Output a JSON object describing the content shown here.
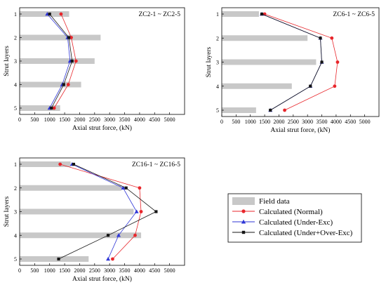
{
  "colors": {
    "field": "#c8c8c8",
    "normal": "#e8262b",
    "under_exc": "#2e35d6",
    "under_over_exc": "#151515"
  },
  "legend": {
    "field": "Field data",
    "normal": "Calculated (Normal)",
    "under_exc": "Calculated (Under-Exc)",
    "under_over_exc": "Calculated (Under+Over-Exc)"
  },
  "chart_data": [
    {
      "type": "bar",
      "orientation": "horizontal",
      "title": "ZC2-1 ~ ZC2-5",
      "xlabel": "Axial strut force, (kN)",
      "ylabel": "Strut layers",
      "xlim": [
        0,
        5500
      ],
      "xticks": [
        "0",
        "500",
        "1000",
        "1500",
        "2000",
        "2500",
        "3000",
        "3500",
        "4000",
        "4500",
        "5000"
      ],
      "categories": [
        "1",
        "2",
        "3",
        "4",
        "5"
      ],
      "series": [
        {
          "name": "Field data",
          "type": "bar",
          "values": [
            1650,
            2700,
            2500,
            2050,
            1350
          ]
        },
        {
          "name": "Calculated (Normal)",
          "type": "line",
          "values": [
            1380,
            1720,
            1880,
            1620,
            1150
          ]
        },
        {
          "name": "Calculated (Under-Exc)",
          "type": "line",
          "values": [
            920,
            1600,
            1680,
            1420,
            1000
          ]
        },
        {
          "name": "Calculated (Under+Over-Exc)",
          "type": "line",
          "values": [
            1000,
            1640,
            1750,
            1470,
            1060
          ]
        }
      ]
    },
    {
      "type": "bar",
      "orientation": "horizontal",
      "title": "ZC6-1 ~ ZC6-5",
      "xlabel": "Axial strut force, (kN)",
      "ylabel": "Strut layers",
      "xlim": [
        0,
        5500
      ],
      "xticks": [
        "0",
        "500",
        "1000",
        "1500",
        "2000",
        "2500",
        "3000",
        "3500",
        "4000",
        "4500",
        "5000"
      ],
      "categories": [
        "1",
        "2",
        "3",
        "4",
        "5"
      ],
      "series": [
        {
          "name": "Field data",
          "type": "bar",
          "values": [
            1300,
            3000,
            3300,
            2450,
            1200
          ]
        },
        {
          "name": "Calculated (Normal)",
          "type": "line",
          "values": [
            1500,
            3850,
            4050,
            3950,
            2200
          ]
        },
        {
          "name": "Calculated (Under-Exc)",
          "type": "line",
          "values": [
            1400,
            3450,
            3500,
            3100,
            1700
          ]
        },
        {
          "name": "Calculated (Under+Over-Exc)",
          "type": "line",
          "values": [
            1400,
            3450,
            3500,
            3100,
            1700
          ]
        }
      ]
    },
    {
      "type": "bar",
      "orientation": "horizontal",
      "title": "ZC16-1 ~ ZC16-5",
      "xlabel": "Axial strut force, (kN)",
      "ylabel": "Strut layers",
      "xlim": [
        0,
        5500
      ],
      "xticks": [
        "0",
        "500",
        "1000",
        "1500",
        "2000",
        "2500",
        "3000",
        "3500",
        "4000",
        "4500",
        "5000"
      ],
      "categories": [
        "1",
        "2",
        "3",
        "4",
        "5"
      ],
      "series": [
        {
          "name": "Field data",
          "type": "bar",
          "values": [
            1700,
            3400,
            3800,
            4050,
            2300
          ]
        },
        {
          "name": "Calculated (Normal)",
          "type": "line",
          "values": [
            1350,
            4000,
            4050,
            3850,
            3100
          ]
        },
        {
          "name": "Calculated (Under-Exc)",
          "type": "line",
          "values": [
            1750,
            3450,
            3900,
            3300,
            2950
          ]
        },
        {
          "name": "Calculated (Under+Over-Exc)",
          "type": "line",
          "values": [
            1800,
            3550,
            4550,
            2950,
            1300
          ]
        }
      ]
    }
  ]
}
